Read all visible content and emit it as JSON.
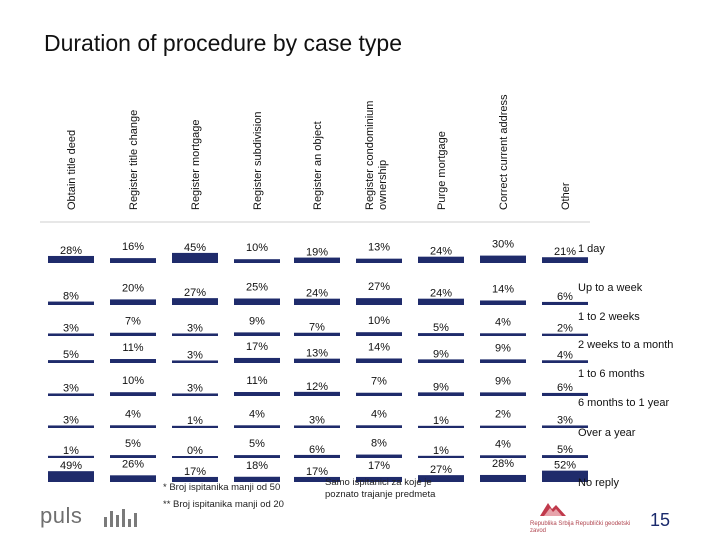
{
  "title": "Duration of procedure by case type",
  "chart_data": {
    "type": "bar",
    "orientation": "stacked-column",
    "title": "Duration of procedure by case type",
    "categories": [
      "Obtain title deed",
      "Register title change",
      "Register mortgage",
      "Register subdivision",
      "Register an object",
      "Register condominium ownership",
      "Purge mortgage",
      "Correct current address",
      "Other"
    ],
    "series": [
      {
        "name": "1 day",
        "labels": [
          "28%",
          "16%",
          "45%",
          "10%",
          "19%",
          "13%",
          "24%",
          "30%",
          "21%"
        ],
        "values": [
          28,
          16,
          45,
          10,
          19,
          13,
          24,
          30,
          21
        ]
      },
      {
        "name": "Up to a week",
        "labels": [
          "8%",
          "20%",
          "27%",
          "25%",
          "24%",
          "27%",
          "24%",
          "14%",
          "6%"
        ],
        "values": [
          8,
          20,
          27,
          25,
          24,
          27,
          24,
          14,
          6
        ]
      },
      {
        "name": "1 to 2 weeks",
        "labels": [
          "3%",
          "7%",
          "3%",
          "9%",
          "7%",
          "10%",
          "5%",
          "4%",
          "2%"
        ],
        "values": [
          3,
          7,
          3,
          9,
          7,
          10,
          5,
          4,
          2
        ]
      },
      {
        "name": "2 weeks to a month",
        "labels": [
          "5%",
          "11%",
          "3%",
          "17%",
          "13%",
          "14%",
          "9%",
          "9%",
          "4%"
        ],
        "values": [
          5,
          11,
          3,
          17,
          13,
          14,
          9,
          9,
          4
        ]
      },
      {
        "name": "1 to 6 months",
        "labels": [
          "3%",
          "10%",
          "3%",
          "11%",
          "12%",
          "7%",
          "9%",
          "9%",
          "6%"
        ],
        "values": [
          3,
          10,
          3,
          11,
          12,
          7,
          9,
          9,
          6
        ]
      },
      {
        "name": "6 months to 1 year",
        "labels": [
          "3%",
          "4%",
          "1%",
          "4%",
          "3%",
          "4%",
          "1%",
          "2%",
          "3%"
        ],
        "values": [
          3,
          4,
          1,
          4,
          3,
          4,
          1,
          2,
          3
        ]
      },
      {
        "name": "Over a year",
        "labels": [
          "1%",
          "5%",
          "0%",
          "5%",
          "6%",
          "8%",
          "1%",
          "4%",
          "5%"
        ],
        "values": [
          1,
          5,
          0,
          5,
          6,
          8,
          1,
          4,
          5
        ]
      },
      {
        "name": "No reply",
        "labels": [
          "49%",
          "26%",
          "17%",
          "18%",
          "17%",
          "17%",
          "27%",
          "28%",
          "52%"
        ],
        "values": [
          49,
          26,
          17,
          18,
          17,
          17,
          27,
          28,
          52
        ]
      }
    ],
    "column_markers": [
      "",
      "",
      "",
      "",
      "*",
      "",
      "**",
      "",
      ""
    ],
    "legend_position": "right"
  },
  "footnotes": {
    "single": "Broj ispitanika manji od 50",
    "double": "Broj ispitanika manji od 20",
    "single_mark": "*",
    "double_mark": "**",
    "note_line1": "Samo ispitanici za koje je",
    "note_line2": "poznato trajanje predmeta"
  },
  "branding": {
    "puls": "puls",
    "agency_name": "Republika Srbija Republički geodetski zavod",
    "page_number": "15"
  },
  "colors": {
    "bar": "#1f2b6b",
    "text": "#111111",
    "logo_accent": "#c0394b"
  }
}
